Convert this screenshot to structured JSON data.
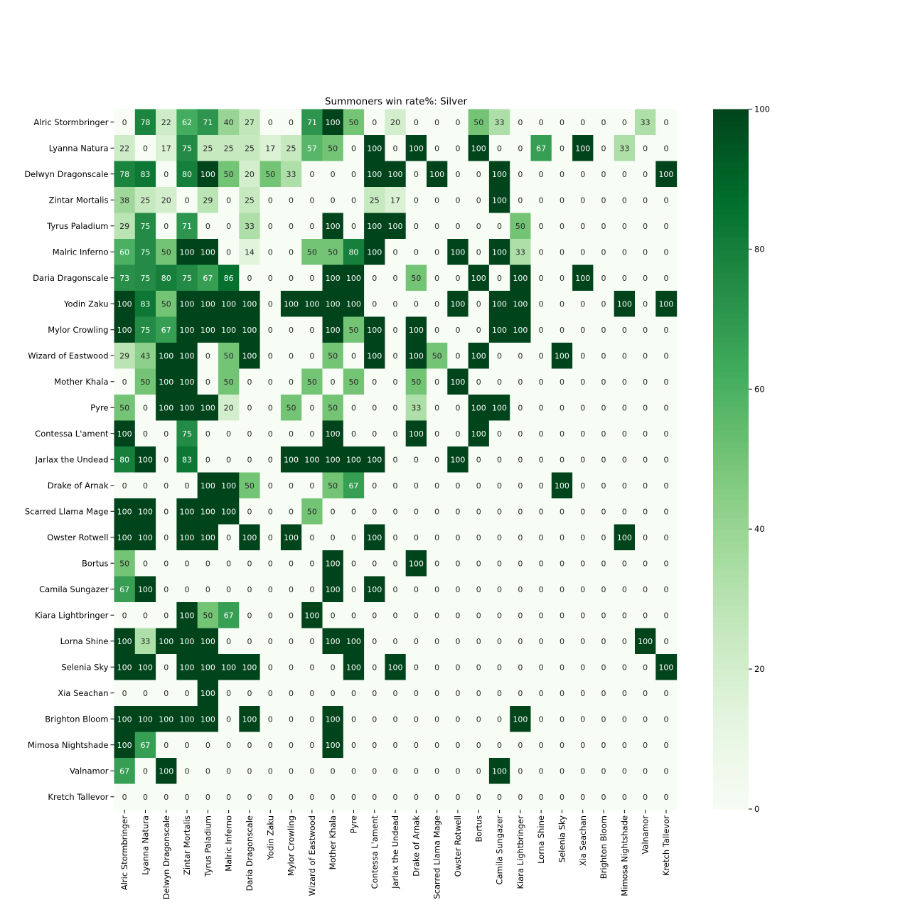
{
  "chart_data": {
    "type": "heatmap",
    "title": "Summoners win rate%: Silver",
    "xlabel": "",
    "ylabel": "",
    "rows": [
      "Alric Stormbringer",
      "Lyanna Natura",
      "Delwyn Dragonscale",
      "Zintar Mortalis",
      "Tyrus Paladium",
      "Malric Inferno",
      "Daria Dragonscale",
      "Yodin Zaku",
      "Mylor Crowling",
      "Wizard of Eastwood",
      "Mother Khala",
      "Pyre",
      "Contessa L'ament",
      "Jarlax the Undead",
      "Drake of Arnak",
      "Scarred Llama Mage",
      "Owster Rotwell",
      "Bortus",
      "Camila Sungazer",
      "Kiara Lightbringer",
      "Lorna Shine",
      "Selenia Sky",
      "Xia Seachan",
      "Brighton Bloom",
      "Mimosa Nightshade",
      "Valnamor",
      "Kretch Tallevor"
    ],
    "columns": [
      "Alric Stormbringer",
      "Lyanna Natura",
      "Delwyn Dragonscale",
      "Zintar Mortalis",
      "Tyrus Paladium",
      "Malric Inferno",
      "Daria Dragonscale",
      "Yodin Zaku",
      "Mylor Crowling",
      "Wizard of Eastwood",
      "Mother Khala",
      "Pyre",
      "Contessa L'ament",
      "Jarlax the Undead",
      "Drake of Arnak",
      "Scarred Llama Mage",
      "Owster Rotwell",
      "Bortus",
      "Camila Sungazer",
      "Kiara Lightbringer",
      "Lorna Shine",
      "Selenia Sky",
      "Xia Seachan",
      "Brighton Bloom",
      "Mimosa Nightshade",
      "Valnamor",
      "Kretch Tallevor"
    ],
    "values": [
      [
        0,
        78,
        22,
        62,
        71,
        40,
        27,
        0,
        0,
        71,
        100,
        50,
        0,
        20,
        0,
        0,
        0,
        50,
        33,
        0,
        0,
        0,
        0,
        0,
        0,
        33,
        0
      ],
      [
        22,
        0,
        17,
        75,
        25,
        25,
        25,
        17,
        25,
        57,
        50,
        0,
        100,
        0,
        100,
        0,
        0,
        100,
        0,
        0,
        67,
        0,
        100,
        0,
        33,
        0,
        0
      ],
      [
        78,
        83,
        0,
        80,
        100,
        50,
        20,
        50,
        33,
        0,
        0,
        0,
        100,
        100,
        0,
        100,
        0,
        0,
        100,
        0,
        0,
        0,
        0,
        0,
        0,
        0,
        100
      ],
      [
        38,
        25,
        20,
        0,
        29,
        0,
        25,
        0,
        0,
        0,
        0,
        0,
        25,
        17,
        0,
        0,
        0,
        0,
        100,
        0,
        0,
        0,
        0,
        0,
        0,
        0,
        0
      ],
      [
        29,
        75,
        0,
        71,
        0,
        0,
        33,
        0,
        0,
        0,
        100,
        0,
        100,
        100,
        0,
        0,
        0,
        0,
        0,
        50,
        0,
        0,
        0,
        0,
        0,
        0,
        0
      ],
      [
        60,
        75,
        50,
        100,
        100,
        0,
        14,
        0,
        0,
        50,
        50,
        80,
        100,
        0,
        0,
        0,
        100,
        0,
        100,
        33,
        0,
        0,
        0,
        0,
        0,
        0,
        0
      ],
      [
        73,
        75,
        80,
        75,
        67,
        86,
        0,
        0,
        0,
        0,
        100,
        100,
        0,
        0,
        50,
        0,
        0,
        100,
        0,
        100,
        0,
        0,
        100,
        0,
        0,
        0,
        0
      ],
      [
        100,
        83,
        50,
        100,
        100,
        100,
        100,
        0,
        100,
        100,
        100,
        100,
        0,
        0,
        0,
        0,
        100,
        0,
        100,
        100,
        0,
        0,
        0,
        0,
        100,
        0,
        100
      ],
      [
        100,
        75,
        67,
        100,
        100,
        100,
        100,
        0,
        0,
        0,
        100,
        50,
        100,
        0,
        100,
        0,
        0,
        0,
        100,
        100,
        0,
        0,
        0,
        0,
        0,
        0,
        0
      ],
      [
        29,
        43,
        100,
        100,
        0,
        50,
        100,
        0,
        0,
        0,
        50,
        0,
        100,
        0,
        100,
        50,
        0,
        100,
        0,
        0,
        0,
        100,
        0,
        0,
        0,
        0,
        0
      ],
      [
        0,
        50,
        100,
        100,
        0,
        50,
        0,
        0,
        0,
        50,
        0,
        50,
        0,
        0,
        50,
        0,
        100,
        0,
        0,
        0,
        0,
        0,
        0,
        0,
        0,
        0,
        0
      ],
      [
        50,
        0,
        100,
        100,
        100,
        20,
        0,
        0,
        50,
        0,
        50,
        0,
        0,
        0,
        33,
        0,
        0,
        100,
        100,
        0,
        0,
        0,
        0,
        0,
        0,
        0,
        0
      ],
      [
        100,
        0,
        0,
        75,
        0,
        0,
        0,
        0,
        0,
        0,
        100,
        0,
        0,
        0,
        100,
        0,
        0,
        100,
        0,
        0,
        0,
        0,
        0,
        0,
        0,
        0,
        0
      ],
      [
        80,
        100,
        0,
        83,
        0,
        0,
        0,
        0,
        100,
        100,
        100,
        100,
        100,
        0,
        0,
        0,
        100,
        0,
        0,
        0,
        0,
        0,
        0,
        0,
        0,
        0,
        0
      ],
      [
        0,
        0,
        0,
        0,
        100,
        100,
        50,
        0,
        0,
        0,
        50,
        67,
        0,
        0,
        0,
        0,
        0,
        0,
        0,
        0,
        0,
        100,
        0,
        0,
        0,
        0,
        0
      ],
      [
        100,
        100,
        0,
        100,
        100,
        100,
        0,
        0,
        0,
        50,
        0,
        0,
        0,
        0,
        0,
        0,
        0,
        0,
        0,
        0,
        0,
        0,
        0,
        0,
        0,
        0,
        0
      ],
      [
        100,
        100,
        0,
        100,
        100,
        0,
        100,
        0,
        100,
        0,
        0,
        0,
        100,
        0,
        0,
        0,
        0,
        0,
        0,
        0,
        0,
        0,
        0,
        0,
        100,
        0,
        0
      ],
      [
        50,
        0,
        0,
        0,
        0,
        0,
        0,
        0,
        0,
        0,
        100,
        0,
        0,
        0,
        100,
        0,
        0,
        0,
        0,
        0,
        0,
        0,
        0,
        0,
        0,
        0,
        0
      ],
      [
        67,
        100,
        0,
        0,
        0,
        0,
        0,
        0,
        0,
        0,
        100,
        0,
        100,
        0,
        0,
        0,
        0,
        0,
        0,
        0,
        0,
        0,
        0,
        0,
        0,
        0,
        0
      ],
      [
        0,
        0,
        0,
        100,
        50,
        67,
        0,
        0,
        0,
        100,
        0,
        0,
        0,
        0,
        0,
        0,
        0,
        0,
        0,
        0,
        0,
        0,
        0,
        0,
        0,
        0,
        0
      ],
      [
        100,
        33,
        100,
        100,
        100,
        0,
        0,
        0,
        0,
        0,
        100,
        100,
        0,
        0,
        0,
        0,
        0,
        0,
        0,
        0,
        0,
        0,
        0,
        0,
        0,
        100,
        0
      ],
      [
        100,
        100,
        0,
        100,
        100,
        100,
        100,
        0,
        0,
        0,
        0,
        100,
        0,
        100,
        0,
        0,
        0,
        0,
        0,
        0,
        0,
        0,
        0,
        0,
        0,
        0,
        100
      ],
      [
        0,
        0,
        0,
        0,
        100,
        0,
        0,
        0,
        0,
        0,
        0,
        0,
        0,
        0,
        0,
        0,
        0,
        0,
        0,
        0,
        0,
        0,
        0,
        0,
        0,
        0,
        0
      ],
      [
        100,
        100,
        100,
        100,
        100,
        0,
        100,
        0,
        0,
        0,
        100,
        0,
        0,
        0,
        0,
        0,
        0,
        0,
        0,
        100,
        0,
        0,
        0,
        0,
        0,
        0,
        0
      ],
      [
        100,
        67,
        0,
        0,
        0,
        0,
        0,
        0,
        0,
        0,
        100,
        0,
        0,
        0,
        0,
        0,
        0,
        0,
        0,
        0,
        0,
        0,
        0,
        0,
        0,
        0,
        0
      ],
      [
        67,
        0,
        100,
        0,
        0,
        0,
        0,
        0,
        0,
        0,
        0,
        0,
        0,
        0,
        0,
        0,
        0,
        0,
        100,
        0,
        0,
        0,
        0,
        0,
        0,
        0,
        0
      ],
      [
        0,
        0,
        0,
        0,
        0,
        0,
        0,
        0,
        0,
        0,
        0,
        0,
        0,
        0,
        0,
        0,
        0,
        0,
        0,
        0,
        0,
        0,
        0,
        0,
        0,
        0,
        0
      ]
    ],
    "colorbar": {
      "min": 0,
      "max": 100,
      "ticks": [
        0,
        20,
        40,
        60,
        80,
        100
      ],
      "colormap": "Greens",
      "low_color": "#f7fcf5",
      "high_color": "#00441b"
    },
    "cell_labels": true,
    "grid": false,
    "legend": "colorbar-right"
  }
}
